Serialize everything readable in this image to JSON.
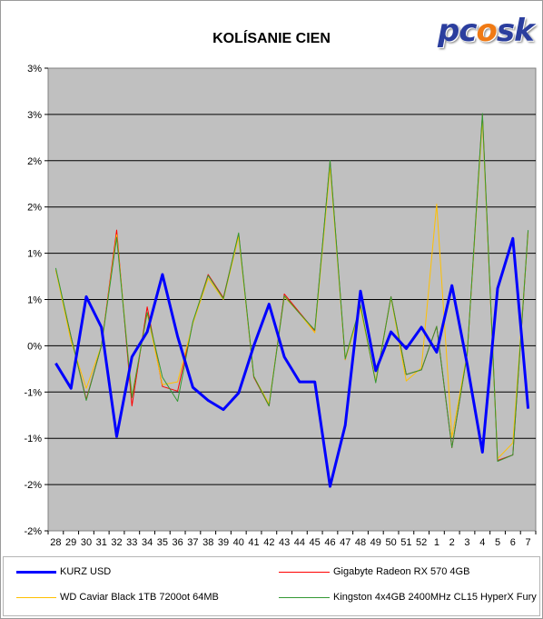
{
  "chart_data": {
    "type": "line",
    "title": "KOLÍSANIE CIEN",
    "xlabel": "",
    "ylabel": "",
    "categories": [
      "28",
      "29",
      "30",
      "31",
      "32",
      "33",
      "34",
      "35",
      "36",
      "37",
      "38",
      "39",
      "40",
      "41",
      "42",
      "43",
      "44",
      "45",
      "46",
      "47",
      "48",
      "49",
      "50",
      "51",
      "52",
      "1",
      "2",
      "3",
      "4",
      "5",
      "6",
      "7"
    ],
    "y_tick_labels": [
      "3%",
      "3%",
      "2%",
      "2%",
      "1%",
      "1%",
      "0%",
      "-1%",
      "-1%",
      "-2%",
      "-2%"
    ],
    "ylim": [
      -2.0,
      3.0
    ],
    "grid": "horizontal",
    "legend_position": "bottom",
    "series": [
      {
        "name": "KURZ USD",
        "color": "#0000ff",
        "values": [
          -0.19,
          -0.46,
          0.53,
          0.2,
          -0.98,
          -0.12,
          0.15,
          0.77,
          0.1,
          -0.45,
          -0.59,
          -0.69,
          -0.51,
          0.0,
          0.45,
          -0.12,
          -0.39,
          -0.39,
          -1.52,
          -0.86,
          0.59,
          -0.27,
          0.15,
          -0.03,
          0.2,
          -0.07,
          0.65,
          -0.2,
          -1.15,
          0.62,
          1.16,
          -0.68
        ]
      },
      {
        "name": "Gigabyte Radeon RX 570 4GB",
        "color": "#ff0000",
        "values": [
          0.82,
          0.1,
          -0.58,
          0.0,
          1.25,
          -0.65,
          0.42,
          -0.44,
          -0.49,
          0.25,
          0.77,
          0.52,
          1.21,
          -0.34,
          -0.65,
          0.56,
          0.36,
          0.16,
          1.99,
          -0.15,
          0.42,
          -0.39,
          0.53,
          -0.31,
          -0.26,
          0.21,
          -1.1,
          -0.09,
          2.49,
          -1.24,
          -1.18,
          1.24
        ]
      },
      {
        "name": "WD Caviar Black 1TB 7200ot 64MB",
        "color": "#ffc000",
        "values": [
          0.82,
          0.05,
          -0.46,
          0.0,
          1.2,
          -0.55,
          0.35,
          -0.42,
          -0.39,
          0.24,
          0.73,
          0.5,
          1.18,
          -0.33,
          -0.63,
          0.53,
          0.35,
          0.14,
          1.93,
          -0.15,
          0.4,
          -0.38,
          0.52,
          -0.38,
          -0.24,
          1.53,
          -0.99,
          -0.08,
          2.44,
          -1.22,
          -1.05,
          1.22
        ]
      },
      {
        "name": "Kingston 4x4GB 2400MHz CL15 HyperX Fury",
        "color": "#339933",
        "values": [
          0.84,
          0.1,
          -0.59,
          0.0,
          1.17,
          -0.56,
          0.36,
          -0.34,
          -0.6,
          0.26,
          0.76,
          0.51,
          1.22,
          -0.33,
          -0.65,
          0.54,
          0.35,
          0.17,
          2.0,
          -0.14,
          0.44,
          -0.4,
          0.53,
          -0.31,
          -0.26,
          0.21,
          -1.1,
          -0.09,
          2.51,
          -1.25,
          -1.18,
          1.25
        ]
      }
    ]
  },
  "logo": {
    "prefix": "pc",
    "flame": "o",
    "suffix": "sk"
  }
}
